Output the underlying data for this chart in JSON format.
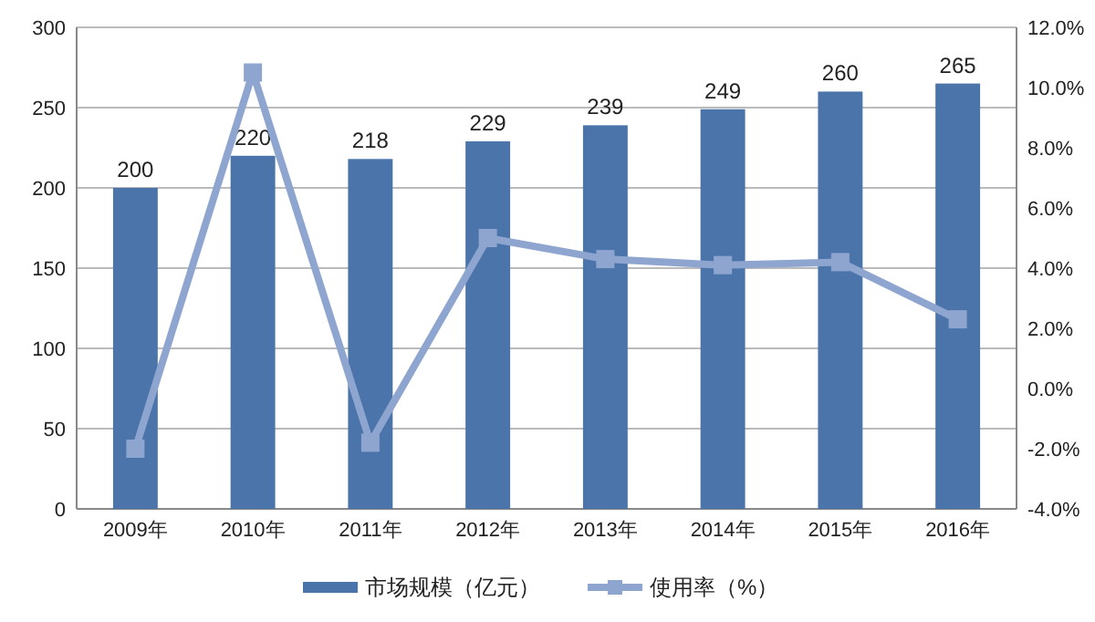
{
  "chart_data": {
    "type": "bar",
    "categories": [
      "2009年",
      "2010年",
      "2011年",
      "2012年",
      "2013年",
      "2014年",
      "2015年",
      "2016年"
    ],
    "series": [
      {
        "name": "市场规模（亿元）",
        "color": "#4a74aa",
        "values": [
          200,
          220,
          218,
          229,
          239,
          249,
          260,
          265
        ],
        "value_labels": [
          "200",
          "220",
          "218",
          "229",
          "239",
          "249",
          "260",
          "265"
        ]
      },
      {
        "name": "使用率（%）",
        "type": "line",
        "axis": "y2",
        "color": "#8ea5cf",
        "marker": "square",
        "values": [
          -2.0,
          10.5,
          -1.8,
          5.0,
          4.3,
          4.1,
          4.2,
          2.3
        ]
      }
    ],
    "ylim": [
      0,
      300
    ],
    "yticks": [
      0,
      50,
      100,
      150,
      200,
      250,
      300
    ],
    "y2lim": [
      -4,
      12
    ],
    "y2ticks": [
      {
        "value": -4,
        "label": "-4.0%"
      },
      {
        "value": -2,
        "label": "-2.0%"
      },
      {
        "value": 0,
        "label": "0.0%"
      },
      {
        "value": 2,
        "label": "2.0%"
      },
      {
        "value": 4,
        "label": "4.0%"
      },
      {
        "value": 6,
        "label": "6.0%"
      },
      {
        "value": 8,
        "label": "8.0%"
      },
      {
        "value": 10,
        "label": "10.0%"
      },
      {
        "value": 12,
        "label": "12.0%"
      }
    ],
    "grid": "y",
    "legend": "bottom"
  }
}
